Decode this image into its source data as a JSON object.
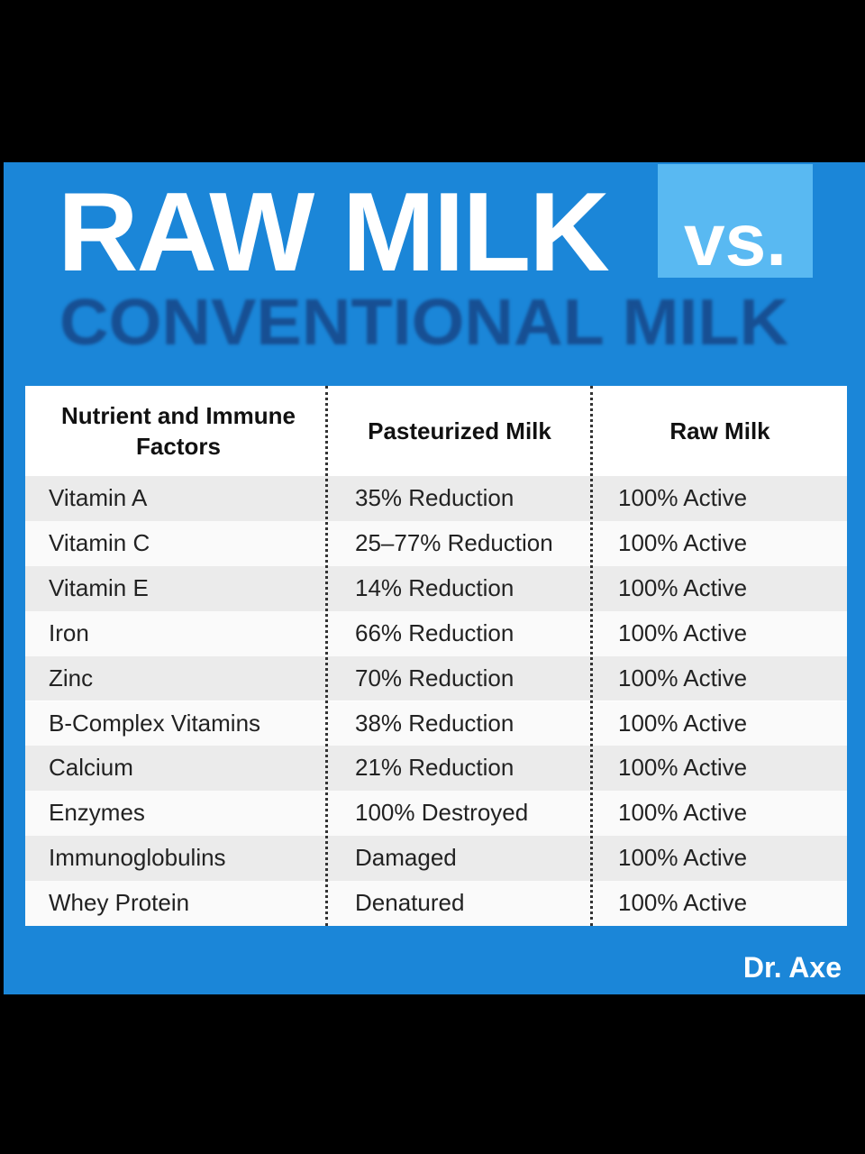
{
  "header": {
    "title": "RAW MILK",
    "badge": "vs.",
    "subtitle": "CONVENTIONAL MILK"
  },
  "table": {
    "columns": [
      "Nutrient and Immune Factors",
      "Pasteurized Milk",
      "Raw Milk"
    ],
    "rows": [
      [
        "Vitamin A",
        "35% Reduction",
        "100% Active"
      ],
      [
        "Vitamin C",
        "25–77% Reduction",
        "100% Active"
      ],
      [
        "Vitamin E",
        "14% Reduction",
        "100% Active"
      ],
      [
        "Iron",
        "66% Reduction",
        "100% Active"
      ],
      [
        "Zinc",
        "70% Reduction",
        "100% Active"
      ],
      [
        "B-Complex Vitamins",
        "38% Reduction",
        "100% Active"
      ],
      [
        "Calcium",
        "21% Reduction",
        "100% Active"
      ],
      [
        "Enzymes",
        "100% Destroyed",
        "100% Active"
      ],
      [
        "Immunoglobulins",
        "Damaged",
        "100% Active"
      ],
      [
        "Whey Protein",
        "Denatured",
        "100% Active"
      ]
    ]
  },
  "footer": {
    "brand": "Dr. Axe"
  }
}
